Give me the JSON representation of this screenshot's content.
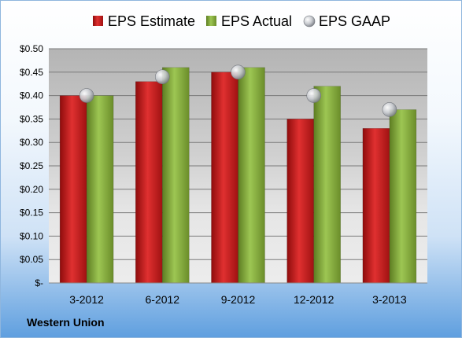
{
  "chart_data": {
    "type": "bar",
    "title": "",
    "xlabel": "",
    "ylabel": "",
    "categories": [
      "3-2012",
      "6-2012",
      "9-2012",
      "12-2012",
      "3-2013"
    ],
    "series": [
      {
        "name": "EPS Estimate",
        "kind": "bar",
        "color": "#d42020",
        "values": [
          0.4,
          0.43,
          0.45,
          0.35,
          0.33
        ]
      },
      {
        "name": "EPS Actual",
        "kind": "bar",
        "color": "#8db343",
        "values": [
          0.4,
          0.46,
          0.46,
          0.42,
          0.37
        ]
      },
      {
        "name": "EPS GAAP",
        "kind": "marker",
        "color": "#b8bcc2",
        "values": [
          0.4,
          0.44,
          0.45,
          0.4,
          0.37
        ]
      }
    ],
    "ylim": [
      0,
      0.5
    ],
    "yticks": [
      0,
      0.05,
      0.1,
      0.15,
      0.2,
      0.25,
      0.3,
      0.35,
      0.4,
      0.45,
      0.5
    ],
    "ytick_labels": [
      "$-",
      "$0.05",
      "$0.10",
      "$0.15",
      "$0.20",
      "$0.25",
      "$0.30",
      "$0.35",
      "$0.40",
      "$0.45",
      "$0.50"
    ],
    "grid": true,
    "legend": "top"
  },
  "company_label": "Western Union"
}
